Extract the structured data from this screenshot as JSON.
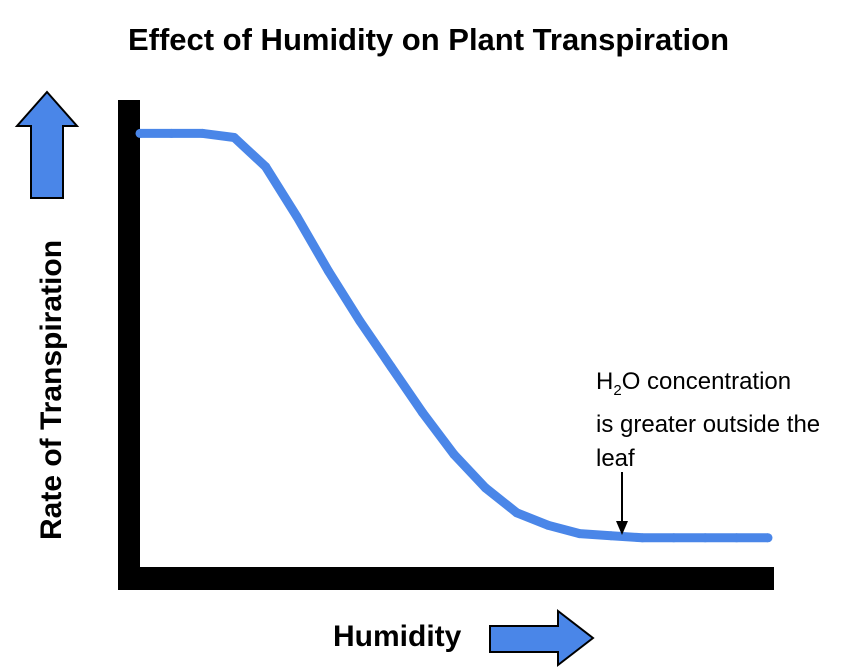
{
  "chart_data": {
    "type": "line",
    "title": "Effect of Humidity on Plant Transpiration",
    "xlabel": "Humidity",
    "ylabel": "Rate of Transpiration",
    "x_ticks": "none",
    "y_ticks": "none",
    "x": [
      0,
      5,
      10,
      15,
      20,
      25,
      30,
      35,
      40,
      45,
      50,
      55,
      60,
      65,
      70,
      75,
      80,
      85,
      90,
      95,
      100
    ],
    "series": [
      {
        "color": "#4a86e8",
        "values": [
          97,
          97,
          97,
          96,
          89,
          77,
          64,
          52,
          41,
          30,
          20,
          12,
          6,
          3,
          1,
          0.5,
          0,
          0,
          0,
          0,
          0
        ]
      }
    ],
    "xlim": [
      0,
      100
    ],
    "ylim": [
      -7,
      105
    ],
    "grid": false,
    "legend": "none",
    "annotations": [
      {
        "text_prefix": "H",
        "text_sub": "2",
        "text_suffix": "O concentration",
        "line2": "is greater outside the",
        "line3": "leaf",
        "points_to_x": 79
      }
    ]
  },
  "colors": {
    "curve": "#4a86e8",
    "axes": "#000000",
    "arrow_fill": "#4a86e8",
    "arrow_stroke": "#000000"
  },
  "icons": {
    "y_arrow": "up-arrow-icon",
    "x_arrow": "right-arrow-icon"
  }
}
